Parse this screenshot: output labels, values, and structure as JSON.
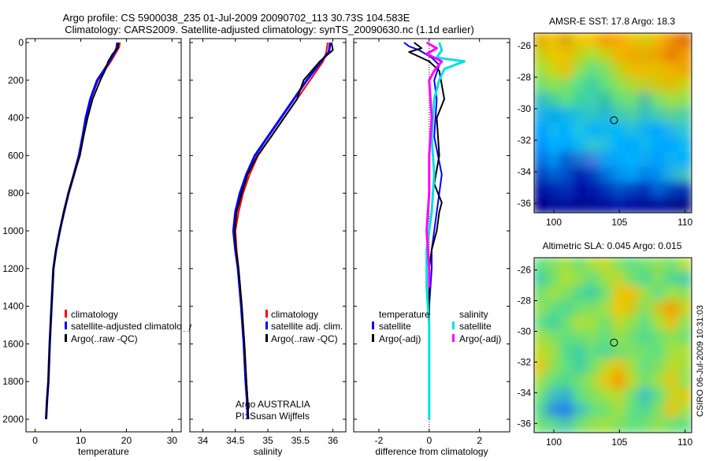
{
  "title_line1": "Argo profile: CS 5900038_235 01-Jul-2009 20090702_113 30.73S 104.583E",
  "title_line2": "Climatology: CARS2009. Satellite-adjusted climatology: synTS_20090630.nc (1.1d earlier)",
  "side_label": "CSIRO 06-Jul-2009 10:31:03",
  "chart_data": [
    {
      "id": "temperature",
      "type": "line",
      "xlabel": "temperature",
      "xlim": [
        -2,
        32
      ],
      "ylim": [
        0,
        2050
      ],
      "xticks": [
        0,
        10,
        20,
        30
      ],
      "xtick_labels": [
        "0",
        "10",
        "20",
        "30"
      ],
      "yticks": [
        0,
        200,
        400,
        600,
        800,
        1000,
        1200,
        1400,
        1600,
        1800,
        2000
      ],
      "ytick_labels": [
        "0",
        "200",
        "400",
        "600",
        "800",
        "1000",
        "1200",
        "1400",
        "1600",
        "1800",
        "2000"
      ],
      "legend": [
        "climatology",
        "satellite-adjusted climatology",
        "Argo(..raw -QC)"
      ],
      "series": [
        {
          "name": "climatology",
          "color": "#ff0000",
          "width": 2,
          "x": [
            18.6,
            18.4,
            17.8,
            16.6,
            15.2,
            13.8,
            12.2,
            11.2,
            10.6,
            9.8,
            8.6,
            7.4,
            6.4,
            5.4,
            4.6,
            4.0,
            3.6,
            3.2,
            2.9,
            2.6,
            2.4
          ],
          "y": [
            0,
            25,
            50,
            100,
            150,
            200,
            300,
            400,
            500,
            600,
            700,
            800,
            900,
            1000,
            1100,
            1200,
            1400,
            1600,
            1800,
            1900,
            2000
          ]
        },
        {
          "name": "satellite-adjusted climatology",
          "color": "#0000ff",
          "width": 3,
          "x": [
            18.0,
            17.9,
            17.5,
            16.3,
            15.0,
            13.6,
            12.1,
            11.1,
            10.4,
            9.6,
            8.5,
            7.3,
            6.3,
            5.4,
            4.6,
            4.0,
            3.6,
            3.2,
            2.9,
            2.6,
            2.4
          ],
          "y": [
            0,
            25,
            50,
            100,
            150,
            200,
            300,
            400,
            500,
            600,
            700,
            800,
            900,
            1000,
            1100,
            1200,
            1400,
            1600,
            1800,
            1900,
            2000
          ]
        },
        {
          "name": "Argo(..raw -QC)",
          "color": "#000000",
          "width": 2,
          "x": [
            18.3,
            18.1,
            17.0,
            16.0,
            15.3,
            14.3,
            12.6,
            11.5,
            10.6,
            9.8,
            8.5,
            7.3,
            6.3,
            5.4,
            4.6,
            4.0,
            3.6,
            3.2,
            2.9,
            2.6,
            2.4
          ],
          "y": [
            0,
            30,
            60,
            100,
            150,
            200,
            300,
            400,
            500,
            600,
            700,
            800,
            900,
            1000,
            1100,
            1200,
            1400,
            1600,
            1800,
            1900,
            2000
          ]
        }
      ]
    },
    {
      "id": "salinity",
      "type": "line",
      "xlabel": "salinity",
      "xlim": [
        33.8,
        36.2
      ],
      "ylim": [
        0,
        2050
      ],
      "xticks": [
        34,
        34.5,
        35,
        35.5,
        36
      ],
      "xtick_labels": [
        "34",
        "34.5",
        "35",
        "35.5",
        "36"
      ],
      "legend": [
        "climatology",
        "satellite adj. clim.",
        "Argo(..raw -QC)"
      ],
      "annotations": [
        "Argo AUSTRALIA",
        "PI: Susan Wijffels"
      ],
      "series": [
        {
          "name": "climatology",
          "color": "#ff0000",
          "width": 2,
          "x": [
            35.92,
            35.9,
            35.85,
            35.65,
            35.45,
            35.25,
            35.05,
            34.85,
            34.72,
            34.62,
            34.55,
            34.5,
            34.52,
            34.55,
            34.6,
            34.64,
            34.67,
            34.69,
            34.7
          ],
          "y": [
            0,
            50,
            100,
            200,
            300,
            400,
            500,
            600,
            700,
            800,
            900,
            1000,
            1100,
            1200,
            1400,
            1600,
            1800,
            1900,
            2000
          ]
        },
        {
          "name": "satellite adj. clim.",
          "color": "#0000ff",
          "width": 3,
          "x": [
            35.96,
            35.94,
            35.82,
            35.6,
            35.4,
            35.2,
            35.0,
            34.8,
            34.67,
            34.57,
            34.5,
            34.47,
            34.5,
            34.54,
            34.59,
            34.63,
            34.66,
            34.68,
            34.69
          ],
          "y": [
            0,
            50,
            100,
            200,
            300,
            400,
            500,
            600,
            700,
            800,
            900,
            1000,
            1100,
            1200,
            1400,
            1600,
            1800,
            1900,
            2000
          ]
        },
        {
          "name": "Argo(..raw -QC)",
          "color": "#000000",
          "width": 2,
          "x": [
            35.98,
            36.0,
            35.8,
            35.55,
            35.45,
            35.25,
            35.05,
            34.84,
            34.69,
            34.6,
            34.52,
            34.49,
            34.51,
            34.55,
            34.6,
            34.64,
            34.67,
            34.69,
            34.7
          ],
          "y": [
            0,
            40,
            100,
            200,
            300,
            400,
            500,
            600,
            700,
            800,
            900,
            1000,
            1100,
            1200,
            1400,
            1600,
            1800,
            1900,
            2000
          ]
        }
      ]
    },
    {
      "id": "difference",
      "type": "line",
      "xlabel": "difference from climatology",
      "xlim": [
        -3,
        3.2
      ],
      "ylim": [
        0,
        2050
      ],
      "xticks": [
        -2,
        0,
        2
      ],
      "xtick_labels": [
        "-2",
        "0",
        "2"
      ],
      "legend_title_left": "temperature",
      "legend_title_right": "salinity",
      "legend": [
        "satellite",
        "Argo(-adj)",
        "satellite",
        "Argo(-adj)"
      ],
      "series": [
        {
          "name": "temperature satellite",
          "color": "#0000ff",
          "width": 2,
          "x": [
            -1.0,
            -0.8,
            -0.4,
            0.1,
            0.4,
            0.2,
            0.3,
            0.2,
            0.5,
            0.4,
            0.3,
            0.2,
            0.1,
            0.1,
            0.0,
            0.0,
            0.0,
            0.0
          ],
          "y": [
            0,
            20,
            40,
            80,
            120,
            200,
            300,
            500,
            700,
            800,
            900,
            1000,
            1100,
            1200,
            1400,
            1600,
            1800,
            2000
          ]
        },
        {
          "name": "temperature Argo(-adj)",
          "color": "#000000",
          "width": 2,
          "x": [
            -0.6,
            -0.3,
            -0.8,
            0.0,
            0.4,
            0.6,
            0.3,
            0.4,
            0.2,
            0.5,
            0.4,
            0.3,
            0.1,
            0.0,
            0.0,
            0.0,
            0.0
          ],
          "y": [
            0,
            30,
            50,
            100,
            150,
            300,
            400,
            600,
            750,
            850,
            900,
            1000,
            1100,
            1200,
            1400,
            1600,
            2000
          ]
        },
        {
          "name": "salinity satellite",
          "color": "#00e0e0",
          "width": 3,
          "x": [
            0.4,
            0.5,
            0.3,
            1.4,
            0.6,
            0.4,
            0.2,
            0.1,
            0.2,
            0.1,
            0.0,
            -0.1,
            -0.1,
            0.0,
            0.0,
            0.0
          ],
          "y": [
            0,
            40,
            80,
            100,
            140,
            200,
            300,
            500,
            700,
            900,
            1000,
            1100,
            1300,
            1500,
            1800,
            2000
          ]
        },
        {
          "name": "salinity Argo(-adj)",
          "color": "#ff00ff",
          "width": 3,
          "x": [
            -0.1,
            0.3,
            -0.1,
            0.5,
            0.2,
            0.0,
            0.1,
            0.0,
            0.0,
            -0.1,
            0.0,
            0.0
          ],
          "y": [
            0,
            30,
            60,
            100,
            150,
            200,
            400,
            600,
            800,
            1000,
            1200,
            1300
          ]
        }
      ]
    },
    {
      "id": "sst_map",
      "type": "heatmap",
      "title": "AMSR-E SST: 17.8 Argo: 18.3",
      "xlim": [
        98.5,
        110.5
      ],
      "ylim": [
        -36.6,
        -25.2
      ],
      "xticks": [
        100,
        105,
        110
      ],
      "xtick_labels": [
        "100",
        "105",
        "110"
      ],
      "yticks": [
        -26,
        -28,
        -30,
        -32,
        -34,
        -36
      ],
      "ytick_labels": [
        "-26",
        "-28",
        "-30",
        "-32",
        "-34",
        "-36"
      ],
      "marker": {
        "lon": 104.583,
        "lat": -30.73
      },
      "grid_colors": [
        [
          "#e0b000",
          "#f0c000",
          "#d8a800",
          "#f0c800",
          "#f8c000",
          "#f0a000",
          "#f8a800",
          "#f0c000",
          "#d8c800",
          "#f0b800",
          "#f09000",
          "#e07000"
        ],
        [
          "#c0d010",
          "#e8c800",
          "#f0c000",
          "#c0d010",
          "#a8e030",
          "#c8d010",
          "#f0b800",
          "#f0a800",
          "#e0b000",
          "#f0a000",
          "#e88000",
          "#f09800"
        ],
        [
          "#a0e040",
          "#c8d810",
          "#e8c000",
          "#90e050",
          "#60e080",
          "#80e060",
          "#c0d010",
          "#e8c000",
          "#f0b800",
          "#e0c000",
          "#f0b000",
          "#e8a800"
        ],
        [
          "#70e070",
          "#90e050",
          "#80e060",
          "#50e090",
          "#40d0a0",
          "#60e080",
          "#90e050",
          "#b0d830",
          "#c0d020",
          "#d0c810",
          "#e0c000",
          "#c8d010"
        ],
        [
          "#30c0c0",
          "#40d0a0",
          "#60e080",
          "#40d0a0",
          "#40d0b0",
          "#30c0a0",
          "#60e080",
          "#70e070",
          "#50c0a0",
          "#80e060",
          "#a0e040",
          "#90e050"
        ],
        [
          "#20b0e0",
          "#00a8f0",
          "#10b8e8",
          "#20c0d8",
          "#30c8c0",
          "#20b8d8",
          "#40c8b0",
          "#50d0a0",
          "#30c0c0",
          "#40d0b0",
          "#60d090",
          "#50d0a0"
        ],
        [
          "#00a0ff",
          "#10b8f0",
          "#00b0ff",
          "#20c8e0",
          "#00b0ff",
          "#10b8f0",
          "#00b8f8",
          "#20c0e0",
          "#10b0f0",
          "#00a8ff",
          "#20b8e8",
          "#30c8d0"
        ],
        [
          "#0090ff",
          "#00b0ff",
          "#00a8ff",
          "#10b8f0",
          "#30c8d0",
          "#20c0e0",
          "#00b0ff",
          "#00a8ff",
          "#10b8f0",
          "#00a8ff",
          "#00a8ff",
          "#10b8f0"
        ],
        [
          "#0070e0",
          "#0090f0",
          "#0060d0",
          "#2070d0",
          "#4080e0",
          "#10a0f0",
          "#00a8ff",
          "#00b0ff",
          "#10a8f0",
          "#00a0ff",
          "#10b0f0",
          "#00b0ff"
        ],
        [
          "#0040c0",
          "#0060d0",
          "#0050c8",
          "#0020b0",
          "#0040c0",
          "#0070d8",
          "#0090f0",
          "#00a0f8",
          "#0080e8",
          "#0090f0",
          "#20b0e0",
          "#40c0c0"
        ],
        [
          "#0010a0",
          "#0020b0",
          "#0030b8",
          "#0010a8",
          "#0018a8",
          "#0030b8",
          "#0050c8",
          "#0040c0",
          "#0030b8",
          "#0060d0",
          "#0040c0",
          "#0030b8"
        ],
        [
          "#00008c",
          "#000898",
          "#0010a0",
          "#000890",
          "#000898",
          "#0010a0",
          "#0018a8",
          "#0010a0",
          "#000898",
          "#0010a0",
          "#000890",
          "#000880"
        ]
      ]
    },
    {
      "id": "sla_map",
      "type": "heatmap",
      "title": "Altimetric SLA: 0.045 Argo: 0.015",
      "xlim": [
        98.5,
        110.5
      ],
      "ylim": [
        -36.6,
        -25.2
      ],
      "xticks": [
        100,
        105,
        110
      ],
      "xtick_labels": [
        "100",
        "105",
        "110"
      ],
      "yticks": [
        -26,
        -28,
        -30,
        -32,
        -34,
        -36
      ],
      "ytick_labels": [
        "-26",
        "-28",
        "-30",
        "-32",
        "-34",
        "-36"
      ],
      "marker": {
        "lon": 104.583,
        "lat": -30.73
      },
      "grid_colors": [
        [
          "#60e080",
          "#80e060",
          "#a0e040",
          "#70e070",
          "#a8e038",
          "#c0d820",
          "#80e060",
          "#60e080",
          "#70e070",
          "#90e050",
          "#70e070",
          "#b0e030"
        ],
        [
          "#40d0a0",
          "#70e070",
          "#b0e030",
          "#90e050",
          "#60e080",
          "#a0e040",
          "#c0d820",
          "#70e070",
          "#50d890",
          "#80e060",
          "#50d890",
          "#40d0a0"
        ],
        [
          "#70e070",
          "#a0e040",
          "#80e060",
          "#50d890",
          "#40d0a0",
          "#70e070",
          "#e8c800",
          "#f0c000",
          "#a0e040",
          "#60e080",
          "#a0e040",
          "#90e050"
        ],
        [
          "#90e050",
          "#60e080",
          "#50d890",
          "#70e070",
          "#80e060",
          "#a0e040",
          "#f0c800",
          "#d0c810",
          "#80e060",
          "#d0c810",
          "#f0a000",
          "#c8d010"
        ],
        [
          "#60e080",
          "#40d0a0",
          "#70e070",
          "#b0e030",
          "#a0e040",
          "#70e070",
          "#c0d820",
          "#90e050",
          "#60e080",
          "#a8e038",
          "#e8c000",
          "#90e050"
        ],
        [
          "#a0e040",
          "#80e060",
          "#60e080",
          "#70e070",
          "#80e060",
          "#60e080",
          "#90e050",
          "#70e070",
          "#50d890",
          "#70e070",
          "#90e050",
          "#70e070"
        ],
        [
          "#c0d820",
          "#a0e040",
          "#50d890",
          "#40d0a0",
          "#60e080",
          "#50d890",
          "#70e070",
          "#80e060",
          "#70e070",
          "#60e080",
          "#a0e040",
          "#b0e030"
        ],
        [
          "#e0c800",
          "#90e050",
          "#60e080",
          "#40d0a0",
          "#70e070",
          "#c0d820",
          "#e8c000",
          "#a0e040",
          "#60e080",
          "#80e060",
          "#c0d820",
          "#a0e040"
        ],
        [
          "#a0e040",
          "#60e080",
          "#50d890",
          "#70e070",
          "#a0e040",
          "#e8c800",
          "#f0a000",
          "#c0d820",
          "#70e070",
          "#a0e040",
          "#e0c800",
          "#90e050"
        ],
        [
          "#70e070",
          "#40c0c0",
          "#30b0d0",
          "#60e080",
          "#80e060",
          "#a0e040",
          "#c0d820",
          "#70e070",
          "#40c0c0",
          "#60e080",
          "#c0d820",
          "#e0c800"
        ],
        [
          "#50d890",
          "#3090e0",
          "#2080e8",
          "#40c0c0",
          "#60e080",
          "#70e070",
          "#a0e040",
          "#60e080",
          "#50d890",
          "#80e060",
          "#e8c000",
          "#a0e040"
        ],
        [
          "#70e070",
          "#60d890",
          "#50c8b0",
          "#70e070",
          "#90e050",
          "#a0e040",
          "#80e060",
          "#60e080",
          "#70e070",
          "#90e050",
          "#70e070",
          "#60e080"
        ]
      ]
    }
  ]
}
